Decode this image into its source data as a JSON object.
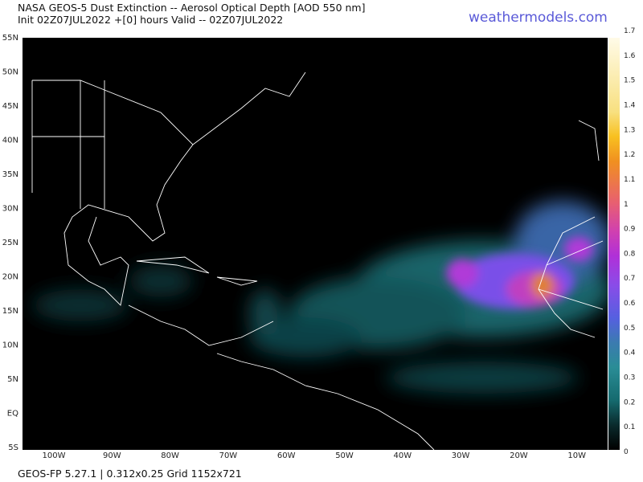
{
  "header": {
    "title": "NASA GEOS-5 Dust Extinction -- Aerosol Optical Depth [AOD 550 nm]",
    "subtitle": "Init 02Z07JUL2022 +[0] hours Valid -- 02Z07JUL2022",
    "brand": "weathermodels.com"
  },
  "map": {
    "lat_labels": [
      "55N",
      "50N",
      "45N",
      "40N",
      "35N",
      "30N",
      "25N",
      "20N",
      "15N",
      "10N",
      "5N",
      "EQ",
      "5S"
    ],
    "lon_labels": [
      "100W",
      "90W",
      "80W",
      "70W",
      "60W",
      "50W",
      "40W",
      "30W",
      "20W",
      "10W"
    ]
  },
  "colorbar": {
    "labels": [
      "0",
      "0.1",
      "0.2",
      "0.3",
      "0.4",
      "0.5",
      "0.6",
      "0.7",
      "0.8",
      "0.9",
      "1",
      "1.1",
      "1.2",
      "1.3",
      "1.4",
      "1.5",
      "1.6",
      "1.7"
    ]
  },
  "footer": {
    "text": "GEOS-FP 5.27.1 | 0.312x0.25 Grid 1152x721"
  }
}
